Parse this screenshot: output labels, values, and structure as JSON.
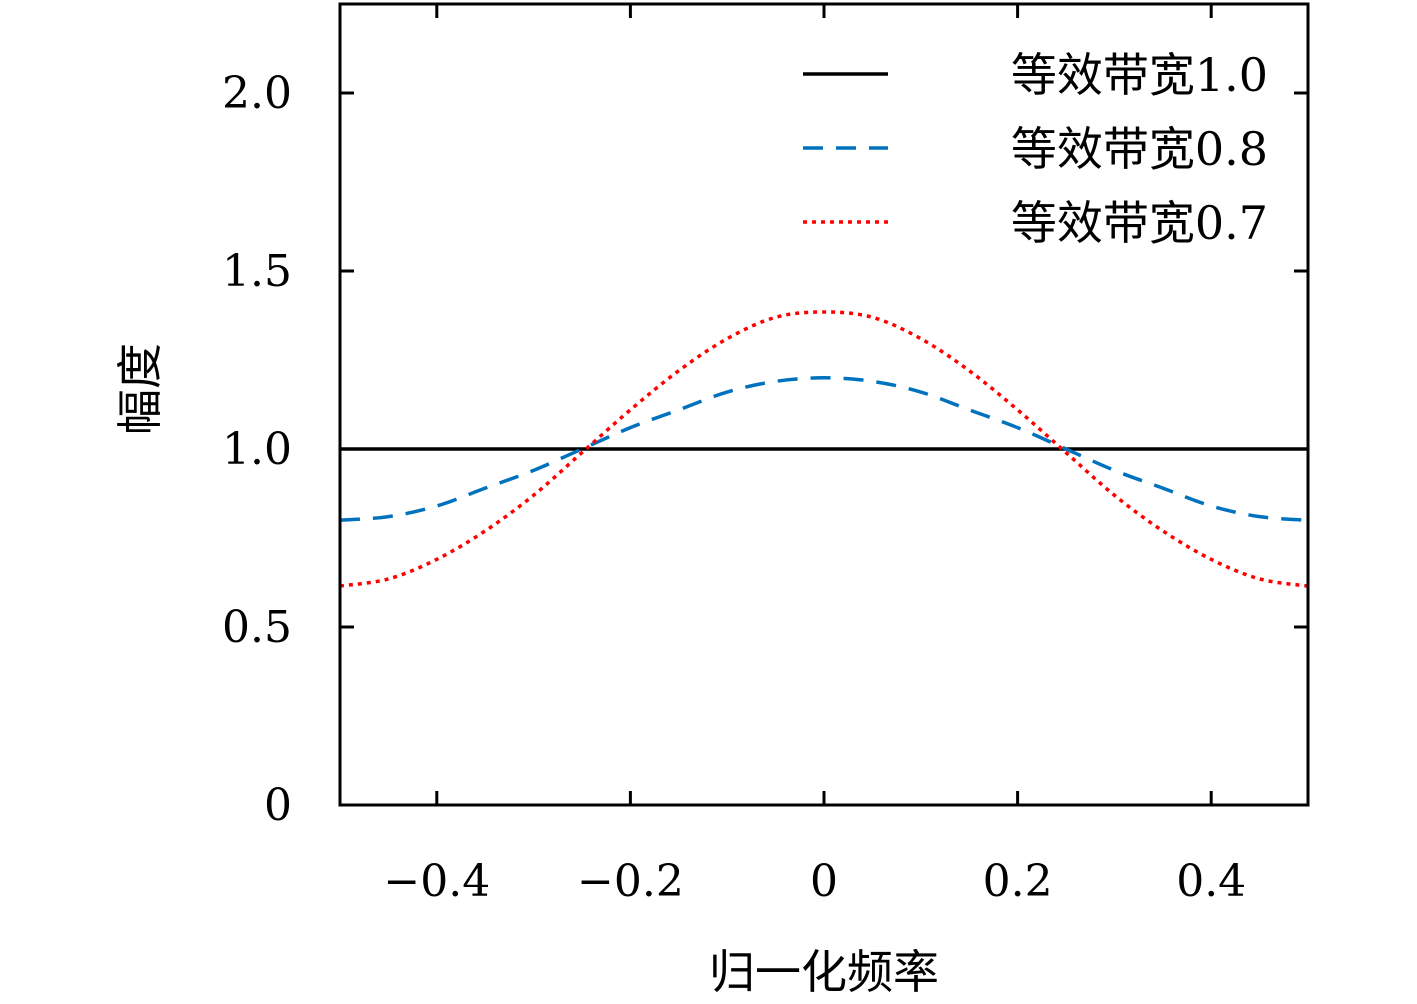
{
  "chart_data": {
    "type": "line",
    "xlabel": "归一化频率",
    "ylabel": "幅度",
    "xlim": [
      -0.5,
      0.5
    ],
    "ylim": [
      0,
      2.25
    ],
    "xticks": [
      -0.4,
      -0.2,
      0,
      0.2,
      0.4
    ],
    "xtick_labels": [
      "−0.4",
      "−0.2",
      "0",
      "0.2",
      "0.4"
    ],
    "yticks": [
      0,
      0.5,
      1.0,
      1.5,
      2.0
    ],
    "ytick_labels": [
      "0",
      "0.5",
      "1.0",
      "1.5",
      "2.0"
    ],
    "grid": false,
    "legend_position": "top-right",
    "x": [
      -0.5,
      -0.45,
      -0.4,
      -0.35,
      -0.3,
      -0.25,
      -0.2,
      -0.15,
      -0.1,
      -0.05,
      0,
      0.05,
      0.1,
      0.15,
      0.2,
      0.25,
      0.3,
      0.35,
      0.4,
      0.45,
      0.5
    ],
    "series": [
      {
        "name": "等效带宽1.0",
        "color": "#000000",
        "style": "solid",
        "values": [
          1.0,
          1.0,
          1.0,
          1.0,
          1.0,
          1.0,
          1.0,
          1.0,
          1.0,
          1.0,
          1.0,
          1.0,
          1.0,
          1.0,
          1.0,
          1.0,
          1.0,
          1.0,
          1.0,
          1.0,
          1.0
        ]
      },
      {
        "name": "等效带宽0.8",
        "color": "#0072bd",
        "style": "dashed",
        "values": [
          0.8,
          0.81,
          0.84,
          0.89,
          0.94,
          1.0,
          1.06,
          1.11,
          1.16,
          1.19,
          1.2,
          1.19,
          1.16,
          1.11,
          1.06,
          1.0,
          0.94,
          0.89,
          0.84,
          0.81,
          0.8
        ]
      },
      {
        "name": "等效带宽0.7",
        "color": "#ff0000",
        "style": "dotted",
        "values": [
          0.615,
          0.635,
          0.69,
          0.77,
          0.87,
          0.99,
          1.11,
          1.22,
          1.31,
          1.37,
          1.385,
          1.37,
          1.31,
          1.22,
          1.11,
          0.99,
          0.87,
          0.77,
          0.69,
          0.635,
          0.615
        ]
      }
    ]
  }
}
